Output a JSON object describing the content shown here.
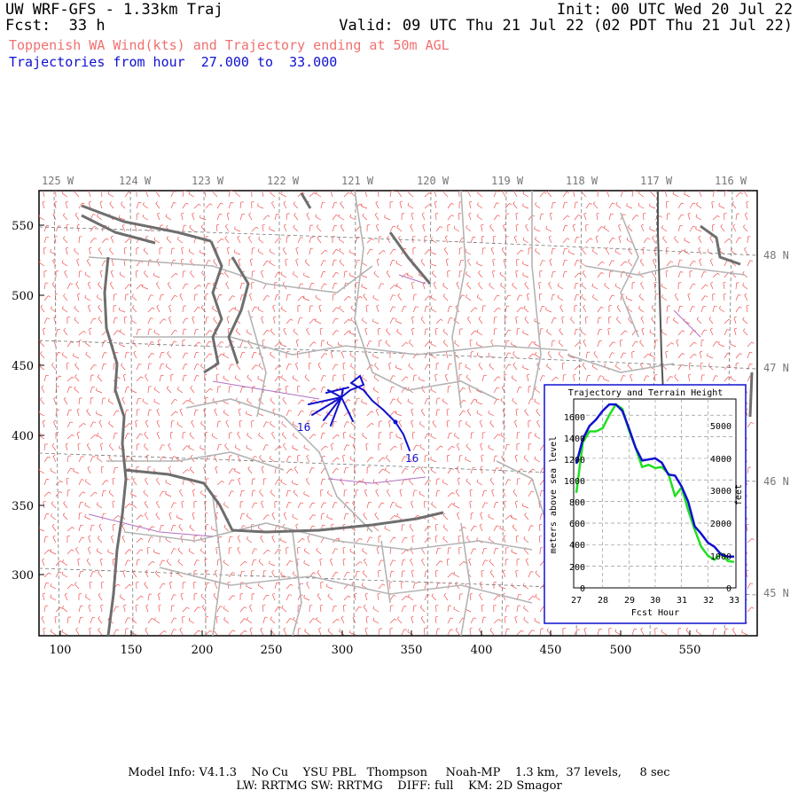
{
  "header": {
    "title": "UW WRF-GFS - 1.33km Traj",
    "init": "Init: 00 UTC Wed 20 Jul 22",
    "fcst": "Fcst:  33 h",
    "valid": "Valid: 09 UTC Thu 21 Jul 22 (02 PDT Thu 21 Jul 22)",
    "subtitle1": "Toppenish WA Wind(kts) and Trajectory ending at 50m AGL",
    "subtitle2": "Trajectories from hour  27.000 to  33.000"
  },
  "map": {
    "lon_labels": [
      "125 W",
      "124 W",
      "123 W",
      "122 W",
      "121 W",
      "120 W",
      "119 W",
      "118 W",
      "117 W",
      "116 W"
    ],
    "lat_labels": [
      "48 N",
      "47 N",
      "46 N",
      "45 N"
    ],
    "y_ticks": [
      "550",
      "500",
      "450",
      "400",
      "350",
      "300"
    ],
    "x_ticks": [
      "100",
      "150",
      "200",
      "250",
      "300",
      "350",
      "400",
      "450",
      "500",
      "550"
    ],
    "trajectory_labels": [
      "16",
      "16"
    ],
    "colors": {
      "wind_barbs": "#f05050",
      "trajectory": "#1010d0",
      "coast": "#707070",
      "borders": "#b0b0b0",
      "terrain": "#b070c0"
    }
  },
  "inset": {
    "title": "Trajectory and Terrain Height",
    "ylabel_left": "meters above sea level",
    "ylabel_right": "feet",
    "xlabel": "Fcst Hour",
    "left_ticks": [
      "1600",
      "1400",
      "1200",
      "1000",
      "800",
      "600",
      "400",
      "200",
      "0"
    ],
    "right_ticks": [
      "5000",
      "4000",
      "3000",
      "2000",
      "1000",
      "0"
    ],
    "x_ticks": [
      "27",
      "28",
      "29",
      "30",
      "31",
      "32",
      "33"
    ]
  },
  "chart_data": {
    "type": "line",
    "title": "Trajectory and Terrain Height",
    "xlabel": "Fcst Hour",
    "ylabel": "meters above sea level",
    "xlim": [
      27,
      33
    ],
    "ylim": [
      0,
      1750
    ],
    "series": [
      {
        "color": "#1010d0",
        "x": [
          27.0,
          27.25,
          27.5,
          27.75,
          28.0,
          28.25,
          28.5,
          28.75,
          29.0,
          29.25,
          29.5,
          29.75,
          30.0,
          30.25,
          30.5,
          30.75,
          31.0,
          31.25,
          31.5,
          31.75,
          32.0,
          32.25,
          32.5,
          32.75,
          33.0
        ],
        "values": [
          1150,
          1380,
          1500,
          1560,
          1640,
          1700,
          1700,
          1640,
          1480,
          1300,
          1180,
          1190,
          1200,
          1160,
          1050,
          1040,
          940,
          800,
          570,
          500,
          420,
          380,
          310,
          290,
          290
        ]
      },
      {
        "color": "#20e020",
        "x": [
          27.0,
          27.25,
          27.5,
          27.75,
          28.0,
          28.25,
          28.5,
          28.75,
          29.0,
          29.25,
          29.5,
          29.75,
          30.0,
          30.25,
          30.5,
          30.75,
          31.0,
          31.25,
          31.5,
          31.75,
          32.0,
          32.25,
          32.5,
          32.75,
          33.0
        ],
        "values": [
          880,
          1350,
          1450,
          1450,
          1480,
          1600,
          1700,
          1660,
          1460,
          1300,
          1120,
          1140,
          1110,
          1120,
          1060,
          850,
          930,
          720,
          540,
          380,
          300,
          260,
          320,
          250,
          240
        ]
      }
    ]
  },
  "footer": {
    "line1": "Model Info: V4.1.3    No Cu    YSU PBL   Thompson     Noah-MP    1.3 km,  37 levels,     8 sec",
    "line2": "LW: RRTMG SW: RRTMG    DIFF: full    KM: 2D Smagor"
  }
}
